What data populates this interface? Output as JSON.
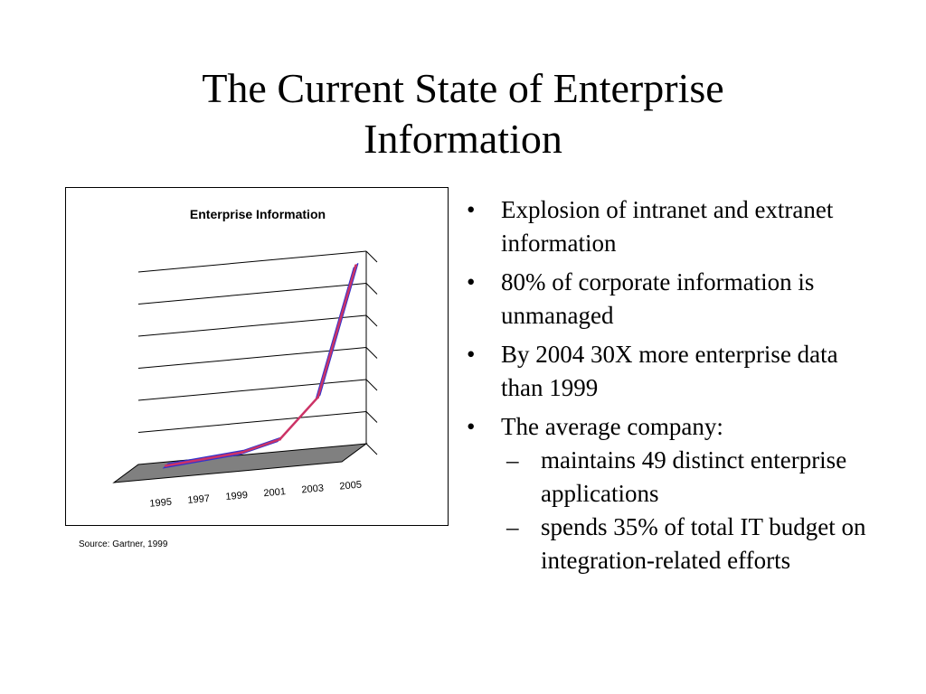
{
  "slide": {
    "title_line1": "The Current State of Enterprise",
    "title_line2": "Information",
    "source": "Source: Gartner, 1999"
  },
  "bullets": [
    {
      "text": "Explosion of intranet and extranet information"
    },
    {
      "text": "80% of corporate information is unmanaged"
    },
    {
      "text": "By 2004 30X more enterprise data than 1999"
    },
    {
      "text": "The average company:",
      "sub": [
        "maintains 49 distinct enterprise applications",
        "spends 35% of total IT budget on integration-related efforts"
      ]
    }
  ],
  "chart_data": {
    "type": "line",
    "style": "3d",
    "title": "Enterprise Information",
    "x": [
      "1995",
      "1997",
      "1999",
      "2001",
      "2003",
      "2005"
    ],
    "x_ticks": [
      "1995",
      "1997",
      "1999",
      "2001",
      "2003",
      "2005"
    ],
    "series": [
      {
        "values": [
          0.1,
          0.2,
          0.3,
          0.6,
          1.8,
          5.8
        ],
        "color": "#3333cc",
        "stroke": "#cc3366"
      }
    ],
    "ylim": [
      0,
      6
    ],
    "grid": true,
    "legend": "none",
    "y_tick_labels_shown": false
  }
}
